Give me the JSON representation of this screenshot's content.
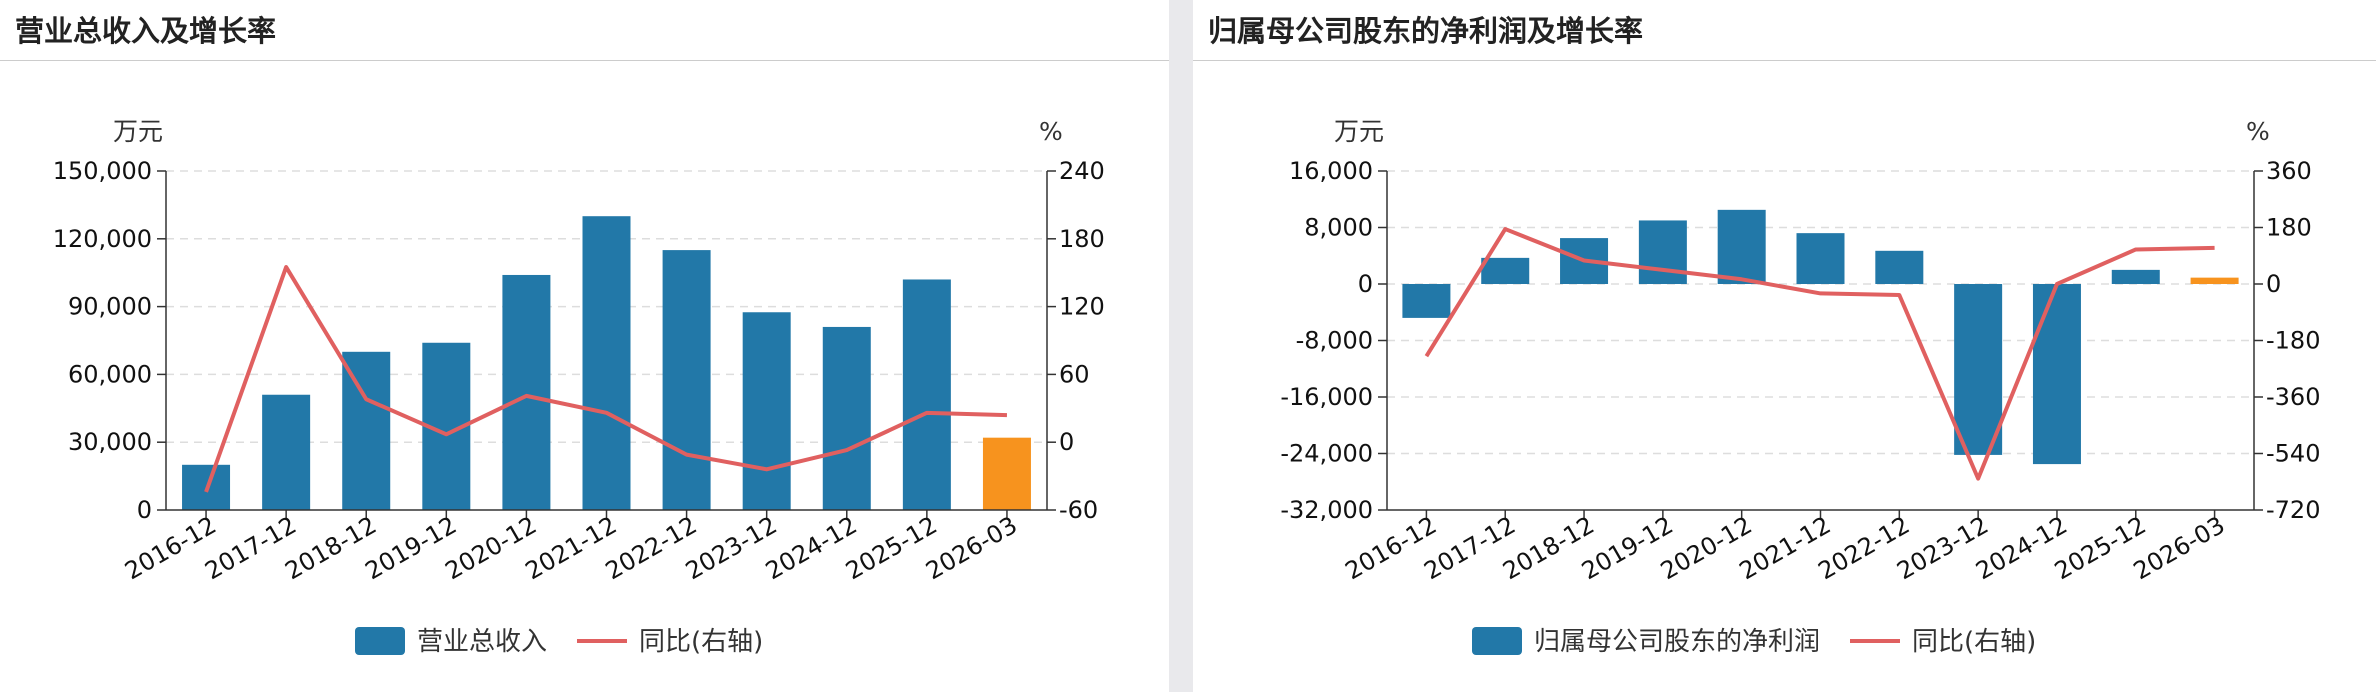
{
  "colors": {
    "bar": "#2278a8",
    "bar_highlight": "#f7931e",
    "line": "#e06060",
    "grid": "#dddddd",
    "axis": "#333333"
  },
  "panels": [
    {
      "title": "营业总收入及增长率"
    },
    {
      "title": "归属母公司股东的净利润及增长率"
    }
  ],
  "chart_data": [
    {
      "type": "bar",
      "title": "营业总收入及增长率",
      "categories": [
        "2016-12",
        "2017-12",
        "2018-12",
        "2019-12",
        "2020-12",
        "2021-12",
        "2022-12",
        "2023-12",
        "2024-12",
        "2025-12",
        "2026-03"
      ],
      "left_unit": "万元",
      "right_unit": "%",
      "ylim": [
        0,
        150000
      ],
      "y_ticks": [
        0,
        30000,
        60000,
        90000,
        120000,
        150000
      ],
      "y_tick_labels": [
        "0",
        "30,000",
        "60,000",
        "90,000",
        "120,000",
        "150,000"
      ],
      "y2lim": [
        -60,
        240
      ],
      "y2_ticks": [
        -60,
        0,
        60,
        120,
        180,
        240
      ],
      "y2_tick_labels": [
        "-60",
        "0",
        "60",
        "120",
        "180",
        "240"
      ],
      "highlight_index": 10,
      "series": [
        {
          "name": "营业总收入",
          "type": "bar",
          "axis": "left",
          "values": [
            20000,
            51000,
            70000,
            74000,
            104000,
            130000,
            115000,
            87500,
            81000,
            102000,
            32000
          ]
        },
        {
          "name": "同比(右轴)",
          "type": "line",
          "axis": "right",
          "values": [
            -44,
            155,
            38,
            7,
            41,
            26,
            -11,
            -24,
            -7,
            26,
            24
          ]
        }
      ],
      "grid": true,
      "legend": "bottom-center"
    },
    {
      "type": "bar",
      "title": "归属母公司股东的净利润及增长率",
      "categories": [
        "2016-12",
        "2017-12",
        "2018-12",
        "2019-12",
        "2020-12",
        "2021-12",
        "2022-12",
        "2023-12",
        "2024-12",
        "2025-12",
        "2026-03"
      ],
      "left_unit": "万元",
      "right_unit": "%",
      "ylim": [
        -32000,
        16000
      ],
      "y_ticks": [
        -32000,
        -24000,
        -16000,
        -8000,
        0,
        8000,
        16000
      ],
      "y_tick_labels": [
        "-32,000",
        "-24,000",
        "-16,000",
        "-8,000",
        "0",
        "8,000",
        "16,000"
      ],
      "y2lim": [
        -720,
        360
      ],
      "y2_ticks": [
        -720,
        -540,
        -360,
        -180,
        0,
        180,
        360
      ],
      "y2_tick_labels": [
        "-720",
        "-540",
        "-360",
        "-180",
        "0",
        "180",
        "360"
      ],
      "highlight_index": 10,
      "series": [
        {
          "name": "归属母公司股东的净利润",
          "type": "bar",
          "axis": "left",
          "values": [
            -4800,
            3700,
            6500,
            9000,
            10500,
            7200,
            4700,
            -24200,
            -25500,
            2000,
            900
          ]
        },
        {
          "name": "同比(右轴)",
          "type": "line",
          "axis": "right",
          "values": [
            -230,
            175,
            75,
            45,
            15,
            -30,
            -35,
            -620,
            0,
            110,
            115
          ]
        }
      ],
      "grid": true,
      "legend": "bottom-center"
    }
  ]
}
